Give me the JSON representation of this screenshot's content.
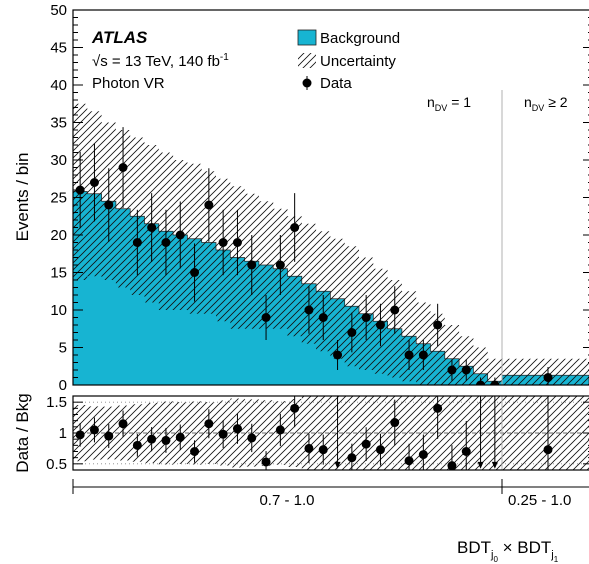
{
  "chart_data": [
    {
      "type": "bar",
      "panel": "main",
      "ylabel": "Events / bin",
      "ylim": [
        0,
        50
      ],
      "yticks": [
        "0",
        "5",
        "10",
        "15",
        "20",
        "25",
        "30",
        "35",
        "40",
        "45",
        "50"
      ],
      "experiment_label": "ATLAS",
      "energy_text": "√s = 13 TeV, 140 fb",
      "lumi_exponent": "-1",
      "region_label": "Photon VR",
      "legend": {
        "position": "top-center",
        "background": "Background",
        "uncertainty": "Uncertainty",
        "data": "Data"
      },
      "region_labels": {
        "ndv1_prefix": "n",
        "ndv1_sub": "DV",
        "ndv1_suffix": " = 1",
        "ndv2_prefix": "n",
        "ndv2_sub": "DV",
        "ndv2_suffix": " ≥ 2"
      },
      "colors": {
        "background_fill": "#17b4d2",
        "divider": "#b0b0b0"
      },
      "bins_ndv1": {
        "background": [
          25.8,
          25.5,
          24.5,
          23.5,
          22.5,
          21.5,
          20.5,
          20.0,
          19.5,
          19.0,
          18.0,
          17.0,
          16.5,
          16.0,
          15.5,
          14.5,
          13.5,
          12.5,
          11.5,
          10.5,
          9.5,
          8.5,
          7.5,
          6.5,
          5.5,
          4.5,
          3.5,
          2.5,
          1.5,
          0.5
        ],
        "unc_up": [
          37.5,
          36.5,
          35.0,
          34.0,
          33.0,
          32.0,
          31.0,
          30.0,
          29.5,
          28.5,
          27.5,
          26.5,
          25.5,
          24.5,
          23.5,
          22.5,
          21.5,
          20.5,
          19.5,
          18.5,
          17.0,
          15.5,
          14.0,
          12.5,
          11.0,
          9.5,
          8.0,
          6.5,
          5.0,
          3.5
        ],
        "unc_down": [
          14.0,
          14.5,
          14.0,
          13.0,
          12.0,
          11.0,
          10.0,
          10.0,
          9.5,
          9.5,
          8.5,
          7.5,
          7.5,
          7.5,
          7.5,
          6.5,
          5.5,
          4.5,
          3.5,
          2.5,
          2.0,
          1.5,
          1.0,
          0.5,
          0.0,
          0.0,
          0.0,
          0.0,
          0.0,
          0.0
        ]
      },
      "bins_ndv2": {
        "background": [
          1.3
        ],
        "unc_up": [
          3.5
        ],
        "unc_down": [
          0.0
        ]
      },
      "data_ndv1": [
        26,
        27,
        24,
        29,
        19,
        21,
        19,
        20,
        15,
        24,
        19,
        19,
        16,
        9,
        16,
        21,
        10,
        9,
        4,
        7,
        9,
        8,
        10,
        4,
        4,
        8,
        2,
        2,
        0,
        0
      ],
      "data_ndv2": [
        1
      ]
    },
    {
      "type": "scatter",
      "panel": "ratio",
      "ylabel": "Data / Bkg",
      "ylim": [
        0.4,
        1.6
      ],
      "yticks": [
        "0.5",
        "1",
        "1.5"
      ],
      "ratio_ndv1": [
        0.97,
        1.05,
        0.95,
        1.15,
        0.8,
        0.9,
        0.88,
        0.93,
        0.7,
        1.15,
        0.98,
        1.07,
        0.92,
        0.53,
        1.05,
        1.4,
        0.75,
        0.73,
        null,
        0.6,
        0.82,
        0.73,
        1.17,
        0.55,
        0.65,
        1.4,
        0.47,
        0.7,
        null,
        null
      ],
      "ratio_ndv2": [
        0.73
      ],
      "xlabel": "BDT",
      "xlabel_sub1": "j",
      "xlabel_subsub1": "0",
      "xlabel_times": " × BDT",
      "xlabel_sub2": "j",
      "xlabel_subsub2": "1",
      "region_ranges": [
        "0.7 - 1.0",
        "0.25 - 1.0"
      ]
    }
  ]
}
